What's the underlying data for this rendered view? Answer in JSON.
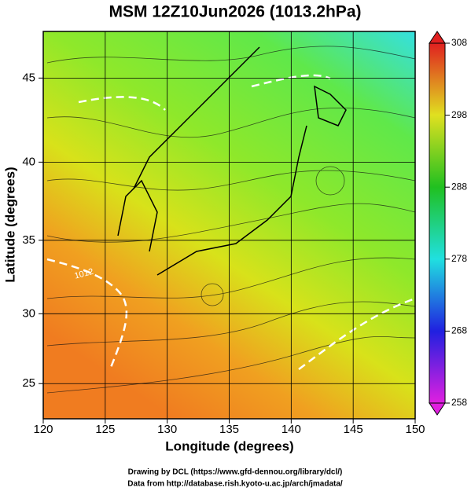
{
  "title": "MSM 12Z10Jun2026 (1013.2hPa)",
  "map": {
    "projection": "mercator",
    "x_axis": {
      "label": "Longitude (degrees)",
      "lim": [
        120,
        150
      ],
      "ticks": [
        120,
        125,
        130,
        135,
        140,
        145,
        150
      ]
    },
    "y_axis": {
      "label": "Latitude  (degrees)",
      "lim": [
        22.4,
        47.6
      ],
      "ticks": [
        25,
        30,
        35,
        40,
        45
      ]
    },
    "contour_labels": [
      "1012"
    ]
  },
  "colorbar": {
    "lim": [
      258,
      308
    ],
    "ticks": [
      258,
      268,
      278,
      288,
      298,
      308
    ]
  },
  "footer": [
    "Drawing by DCL (https://www.gfd-dennou.org/library/dcl/)",
    "Data from http://database.rish.kyoto-u.ac.jp/arch/jmadata/"
  ]
}
